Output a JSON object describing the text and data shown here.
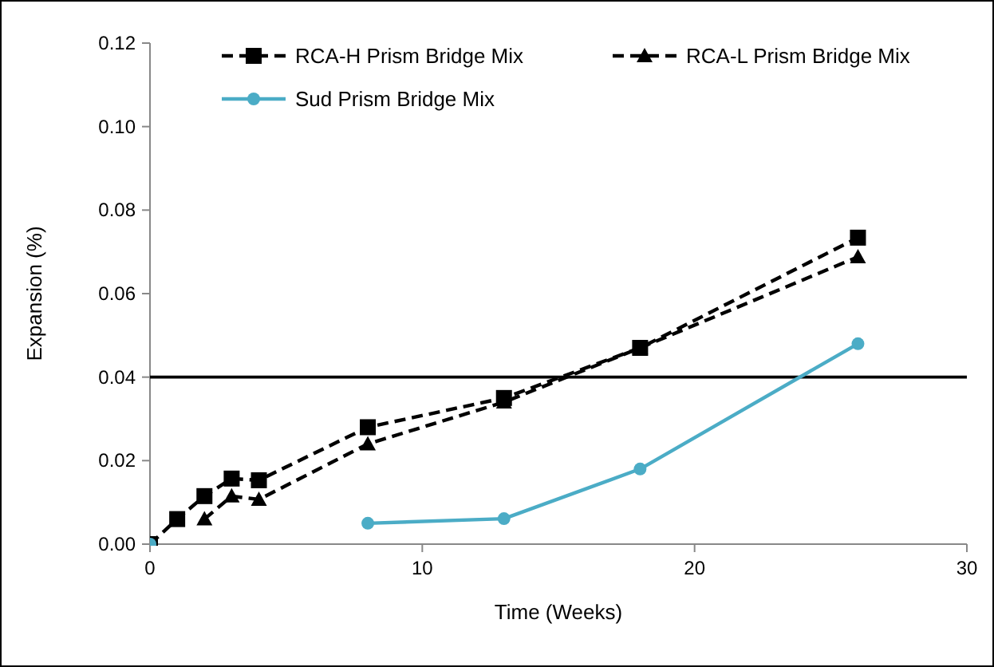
{
  "chart_data": {
    "type": "line",
    "xlabel": "Time (Weeks)",
    "ylabel": "Expansion (%)",
    "xlim": [
      0,
      30
    ],
    "xticks": [
      0,
      10,
      20,
      30
    ],
    "ylim": [
      0,
      0.12
    ],
    "yticks": [
      {
        "value": 0,
        "label": "0.00"
      },
      {
        "value": 0.02,
        "label": "0.02"
      },
      {
        "value": 0.04,
        "label": "0.04"
      },
      {
        "value": 0.06,
        "label": "0.06"
      },
      {
        "value": 0.08,
        "label": "0.08"
      },
      {
        "value": 0.1,
        "label": "0.10"
      },
      {
        "value": 0.12,
        "label": "0.12"
      }
    ],
    "grid": false,
    "legend": "top",
    "ref_lines": [
      {
        "axis": "y",
        "value": 0.04,
        "color": "#000000",
        "line_style": "solid"
      }
    ],
    "series": [
      {
        "name": "RCA-H Prism Bridge Mix",
        "color": "#000000",
        "marker": "square",
        "line_style": "dashed",
        "x": [
          0,
          1,
          2,
          3,
          4,
          8,
          13,
          18,
          26
        ],
        "values": [
          0,
          0.006,
          0.0115,
          0.0157,
          0.0153,
          0.028,
          0.035,
          0.047,
          0.0734
        ]
      },
      {
        "name": "RCA-L Prism Bridge Mix",
        "color": "#000000",
        "marker": "triangle",
        "line_style": "dashed",
        "x": [
          2,
          3,
          4,
          8,
          13,
          18,
          26
        ],
        "values": [
          0.006,
          0.0115,
          0.0107,
          0.024,
          0.034,
          0.047,
          0.0688
        ]
      },
      {
        "name": "Sud Prism Bridge Mix",
        "color": "#4bacc6",
        "marker": "circle",
        "line_style": "solid",
        "x": [
          0,
          4,
          8,
          13,
          18,
          26
        ],
        "values": [
          0,
          null,
          0.005,
          0.0061,
          0.018,
          0.048
        ]
      }
    ]
  }
}
